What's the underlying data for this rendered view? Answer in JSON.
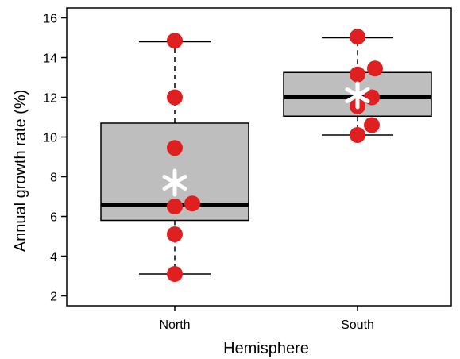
{
  "chart_data": {
    "type": "box",
    "xlabel": "Hemisphere",
    "ylabel": "Annual growth rate (%)",
    "categories": [
      "North",
      "South"
    ],
    "ylim": [
      1.5,
      16.5
    ],
    "yticks": [
      2,
      4,
      6,
      8,
      10,
      12,
      14,
      16
    ],
    "boxes": [
      {
        "category": "North",
        "whisker_low": 3.1,
        "q1": 5.8,
        "median": 6.6,
        "q3": 10.7,
        "whisker_high": 14.8,
        "mean": 7.7
      },
      {
        "category": "South",
        "whisker_low": 10.1,
        "q1": 11.05,
        "median": 12.0,
        "q3": 13.25,
        "whisker_high": 15.0,
        "mean": 12.1
      }
    ],
    "points": [
      {
        "category": "North",
        "values": [
          14.85,
          12.0,
          9.45,
          6.65,
          6.5,
          5.1,
          3.1
        ],
        "jitter": [
          0,
          0,
          0,
          0.22,
          0,
          0,
          0
        ]
      },
      {
        "category": "South",
        "values": [
          15.05,
          13.45,
          13.15,
          12.0,
          11.55,
          10.6,
          10.1
        ],
        "jitter": [
          0,
          0.22,
          0,
          0.18,
          0,
          0.18,
          0
        ]
      }
    ],
    "colors": {
      "box_fill": "#bebebe",
      "point": "#e02020",
      "mean_marker": "#ffffff",
      "line": "#000000"
    },
    "mean_marker": "asterisk",
    "grid": false,
    "legend": "none"
  }
}
